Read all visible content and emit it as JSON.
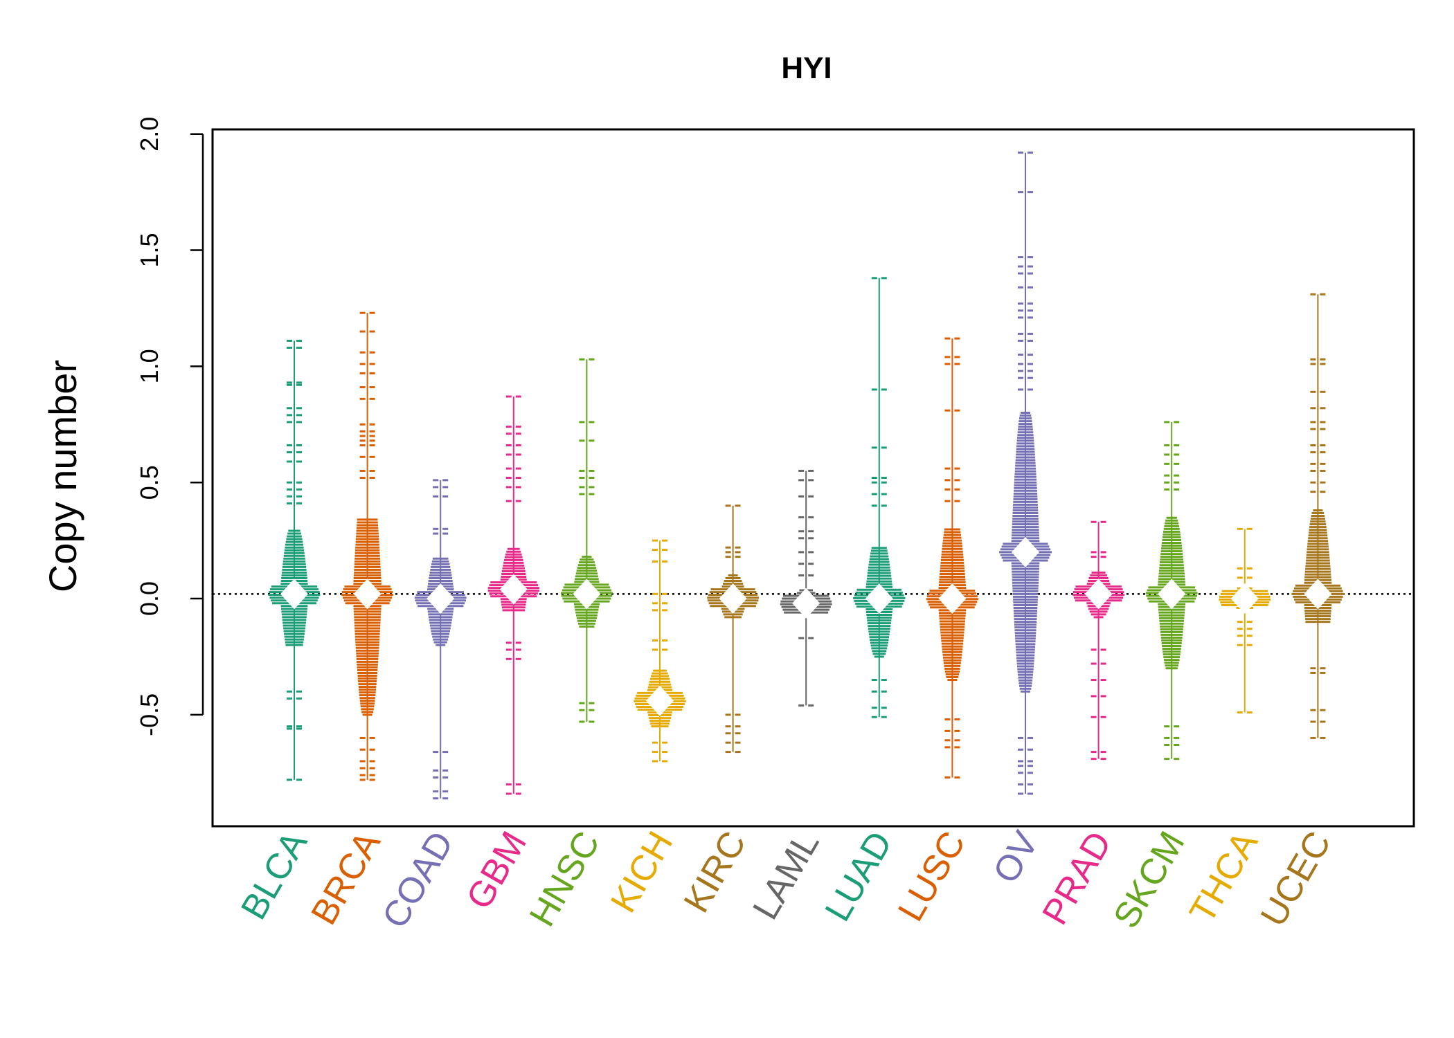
{
  "chart_data": {
    "type": "beeswarm",
    "title": "HYI",
    "xlabel": "",
    "ylabel": "Copy number",
    "ylim": [
      -0.98,
      2.02
    ],
    "yticks": [
      "-0.5",
      "0.0",
      "0.5",
      "1.0",
      "1.5",
      "2.0"
    ],
    "reference_line": 0.02,
    "grid": false,
    "categories": [
      "BLCA",
      "BRCA",
      "COAD",
      "GBM",
      "HNSC",
      "KICH",
      "KIRC",
      "LAML",
      "LUAD",
      "LUSC",
      "OV",
      "PRAD",
      "SKCM",
      "THCA",
      "UCEC"
    ],
    "colors": [
      "#1B9E77",
      "#D95F02",
      "#7570B3",
      "#E7298A",
      "#66A61E",
      "#E6AB02",
      "#A6761D",
      "#666666",
      "#1B9E77",
      "#D95F02",
      "#7570B3",
      "#E7298A",
      "#66A61E",
      "#E6AB02",
      "#A6761D"
    ],
    "series": [
      {
        "category": "BLCA",
        "median": 0.02,
        "min": -0.78,
        "max": 1.11,
        "core_low": -0.2,
        "core_high": 0.3,
        "outliers": [
          1.11,
          1.08,
          0.93,
          0.92,
          0.82,
          0.79,
          0.76,
          0.66,
          0.63,
          0.59,
          0.5,
          0.47,
          0.44,
          0.41,
          -0.4,
          -0.43,
          -0.55,
          -0.56,
          -0.78
        ]
      },
      {
        "category": "BRCA",
        "median": 0.02,
        "min": -0.78,
        "max": 1.23,
        "core_low": -0.5,
        "core_high": 0.35,
        "outliers": [
          1.23,
          1.15,
          1.06,
          1.01,
          0.97,
          0.91,
          0.86,
          0.75,
          0.72,
          0.7,
          0.68,
          0.66,
          0.61,
          0.55,
          0.52,
          -0.6,
          -0.65,
          -0.7,
          -0.73,
          -0.76,
          -0.78
        ]
      },
      {
        "category": "COAD",
        "median": 0.0,
        "min": -0.86,
        "max": 0.51,
        "core_low": -0.2,
        "core_high": 0.18,
        "outliers": [
          0.51,
          0.48,
          0.44,
          0.3,
          0.28,
          -0.66,
          -0.74,
          -0.77,
          -0.83,
          -0.86
        ]
      },
      {
        "category": "GBM",
        "median": 0.04,
        "min": -0.84,
        "max": 0.87,
        "core_low": -0.05,
        "core_high": 0.22,
        "outliers": [
          0.87,
          0.74,
          0.71,
          0.66,
          0.62,
          0.56,
          0.52,
          0.48,
          0.42,
          -0.19,
          -0.22,
          -0.26,
          -0.8,
          -0.84
        ]
      },
      {
        "category": "HNSC",
        "median": 0.02,
        "min": -0.53,
        "max": 1.03,
        "core_low": -0.12,
        "core_high": 0.18,
        "outliers": [
          1.03,
          0.76,
          0.68,
          0.55,
          0.52,
          0.48,
          0.45,
          -0.45,
          -0.48,
          -0.53
        ]
      },
      {
        "category": "KICH",
        "median": -0.44,
        "min": -0.7,
        "max": 0.25,
        "core_low": -0.55,
        "core_high": -0.3,
        "outliers": [
          0.25,
          0.21,
          0.16,
          0.02,
          -0.02,
          -0.05,
          -0.18,
          -0.22,
          -0.62,
          -0.66,
          -0.7
        ]
      },
      {
        "category": "KIRC",
        "median": 0.0,
        "min": -0.66,
        "max": 0.4,
        "core_low": -0.08,
        "core_high": 0.1,
        "outliers": [
          0.4,
          0.22,
          0.2,
          0.18,
          -0.5,
          -0.55,
          -0.58,
          -0.62,
          -0.66
        ]
      },
      {
        "category": "LAML",
        "median": -0.02,
        "min": -0.46,
        "max": 0.55,
        "core_low": -0.06,
        "core_high": 0.04,
        "outliers": [
          0.55,
          0.51,
          0.44,
          0.35,
          0.29,
          0.26,
          0.2,
          0.15,
          0.1,
          -0.17,
          -0.46
        ]
      },
      {
        "category": "LUAD",
        "median": 0.0,
        "min": -0.51,
        "max": 1.38,
        "core_low": -0.25,
        "core_high": 0.22,
        "outliers": [
          1.38,
          0.9,
          0.65,
          0.52,
          0.5,
          0.45,
          0.4,
          -0.35,
          -0.4,
          -0.47,
          -0.51
        ]
      },
      {
        "category": "LUSC",
        "median": 0.0,
        "min": -0.77,
        "max": 1.12,
        "core_low": -0.35,
        "core_high": 0.3,
        "outliers": [
          1.12,
          1.04,
          1.01,
          0.81,
          0.56,
          0.51,
          0.47,
          0.42,
          -0.52,
          -0.57,
          -0.61,
          -0.64,
          -0.77
        ]
      },
      {
        "category": "OV",
        "median": 0.2,
        "min": -0.84,
        "max": 1.92,
        "core_low": -0.4,
        "core_high": 0.8,
        "outliers": [
          1.92,
          1.75,
          1.47,
          1.43,
          1.4,
          1.34,
          1.27,
          1.24,
          1.21,
          1.14,
          1.11,
          1.05,
          1.01,
          0.98,
          0.95,
          0.9,
          -0.6,
          -0.65,
          -0.7,
          -0.72,
          -0.75,
          -0.8,
          -0.84
        ]
      },
      {
        "category": "PRAD",
        "median": 0.02,
        "min": -0.69,
        "max": 0.33,
        "core_low": -0.08,
        "core_high": 0.12,
        "outliers": [
          0.33,
          0.2,
          0.18,
          -0.22,
          -0.28,
          -0.35,
          -0.42,
          -0.51,
          -0.66,
          -0.69
        ]
      },
      {
        "category": "SKCM",
        "median": 0.02,
        "min": -0.69,
        "max": 0.76,
        "core_low": -0.3,
        "core_high": 0.35,
        "outliers": [
          0.76,
          0.66,
          0.62,
          0.58,
          0.53,
          0.5,
          0.47,
          -0.55,
          -0.6,
          -0.63,
          -0.69
        ]
      },
      {
        "category": "THCA",
        "median": 0.0,
        "min": -0.49,
        "max": 0.3,
        "core_low": -0.04,
        "core_high": 0.05,
        "outliers": [
          0.3,
          0.13,
          0.09,
          -0.1,
          -0.13,
          -0.16,
          -0.2,
          -0.49
        ]
      },
      {
        "category": "UCEC",
        "median": 0.02,
        "min": -0.6,
        "max": 1.31,
        "core_low": -0.1,
        "core_high": 0.38,
        "outliers": [
          1.31,
          1.03,
          1.01,
          0.89,
          0.82,
          0.76,
          0.73,
          0.66,
          0.63,
          0.58,
          0.55,
          0.5,
          0.46,
          -0.3,
          -0.32,
          -0.48,
          -0.53,
          -0.6
        ]
      }
    ]
  }
}
